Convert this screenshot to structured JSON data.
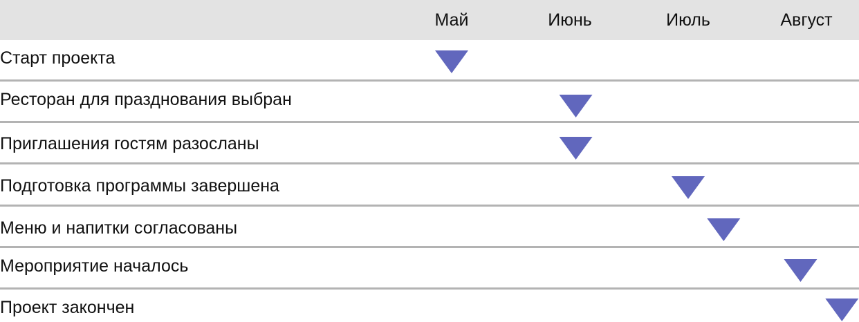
{
  "chart_data": {
    "type": "timeline",
    "columns": [
      "Май",
      "Июнь",
      "Июль",
      "Август"
    ],
    "milestones": [
      {
        "label": "Старт проекта",
        "month": "Май",
        "position": 0.0
      },
      {
        "label": "Ресторан для празднования выбран",
        "month": "Июнь",
        "position": 1.05
      },
      {
        "label": "Приглашения гостям разосланы",
        "month": "Июнь",
        "position": 1.05
      },
      {
        "label": "Подготовка программы завершена",
        "month": "Июль",
        "position": 2.0
      },
      {
        "label": "Меню и напитки согласованы",
        "month": "Июль",
        "position": 2.3
      },
      {
        "label": "Мероприятие началось",
        "month": "Август",
        "position": 2.95
      },
      {
        "label": "Проект закончен",
        "month": "Август",
        "position": 3.3
      }
    ],
    "marker_color": "#6167bd",
    "header_background": "#e3e3e3",
    "divider_color": "#b3b3b3"
  }
}
